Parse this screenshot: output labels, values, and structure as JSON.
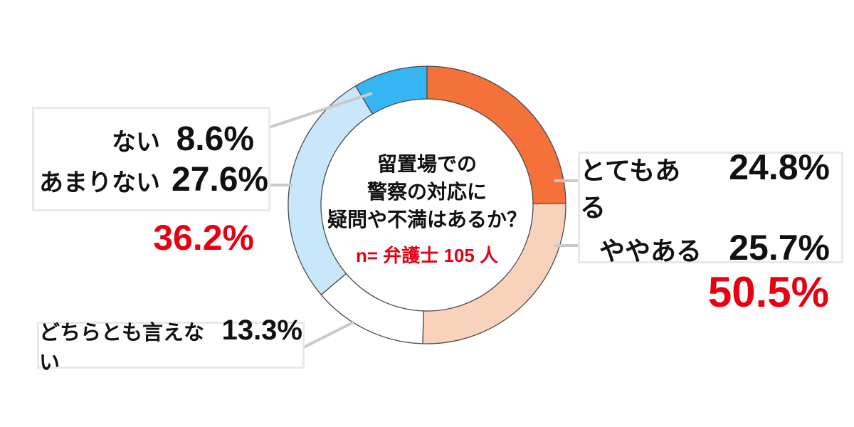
{
  "chart_data": {
    "type": "pie",
    "variant": "donut",
    "direction": "clockwise",
    "start_angle_deg": 0,
    "center_title_lines": [
      "留置場での",
      "警察の対応に",
      "疑問や不満はあるか？"
    ],
    "sample_note": "n= 弁護士 105 人",
    "segments": [
      {
        "label": "とてもある",
        "value": 24.8,
        "display": "24.8%",
        "color": "#F4713A"
      },
      {
        "label": "ややある",
        "value": 25.7,
        "display": "25.7%",
        "color": "#F9D2BB"
      },
      {
        "label": "どちらとも言えない",
        "value": 13.3,
        "display": "13.3%",
        "color": "#FFFFFF"
      },
      {
        "label": "あまりない",
        "value": 27.6,
        "display": "27.6%",
        "color": "#C9E7FA"
      },
      {
        "label": "ない",
        "value": 8.6,
        "display": "8.6%",
        "color": "#35B6F2"
      }
    ],
    "group_totals": {
      "negative": "36.2%",
      "positive": "50.5%"
    },
    "legend_position": "callout-boxes",
    "grid": false
  },
  "styles": {
    "accent_red": "#E60012",
    "segment_outline": "#4A4A4A",
    "leader_line": "#C9C9C9",
    "box_border": "#E8E8E8"
  }
}
